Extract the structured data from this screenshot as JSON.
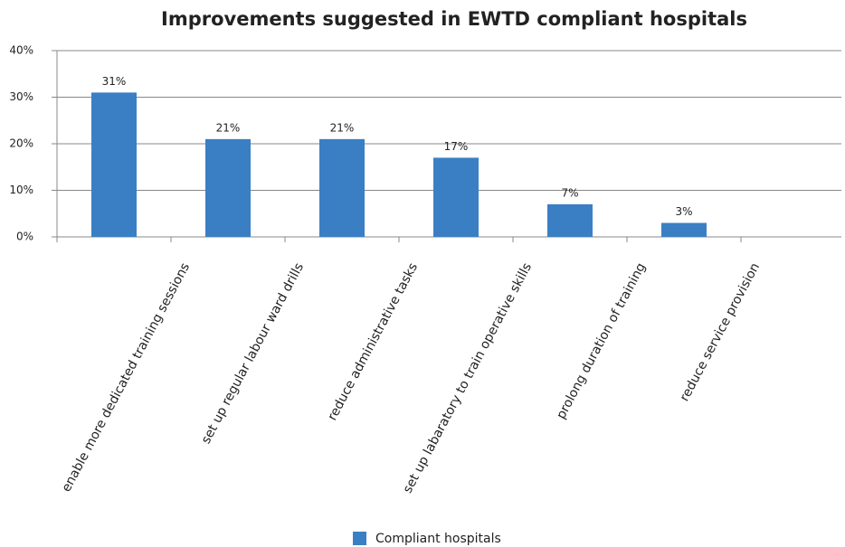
{
  "chart_data": {
    "type": "bar",
    "title": "Improvements suggested in EWTD compliant hospitals",
    "categories": [
      "enable more dedicated training sessions",
      "set up regular labour ward drills",
      "reduce administrative tasks",
      "set up labaratory to train operative skills",
      "prolong duration of training",
      "reduce service provision"
    ],
    "series": [
      {
        "name": "Compliant hospitals",
        "color": "#3a7fc4",
        "values": [
          31,
          21,
          21,
          17,
          7,
          3
        ],
        "value_labels": [
          "31%",
          "21%",
          "21%",
          "17%",
          "7%",
          "3%"
        ]
      }
    ],
    "ylim": [
      0,
      40
    ],
    "yticks": [
      {
        "value": 0,
        "label": "0%"
      },
      {
        "value": 10,
        "label": "10%"
      },
      {
        "value": 20,
        "label": "20%"
      },
      {
        "value": 30,
        "label": "30%"
      },
      {
        "value": 40,
        "label": "40%"
      }
    ],
    "grid": true,
    "legend": "bottom"
  }
}
